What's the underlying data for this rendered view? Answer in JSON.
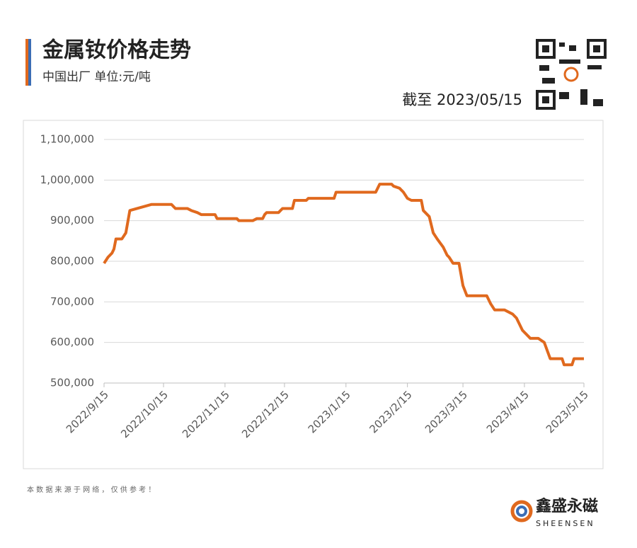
{
  "chart_data": {
    "type": "line",
    "title": "金属钕价格走势",
    "subtitle": "中国出厂  单位:元/吨",
    "date_note": "截至 2023/05/15",
    "footnote": "本 数 据 来 源 于 网 络 ， 仅 供 参 考 ！",
    "brand": "鑫盛永磁",
    "brand_en": "SHEENSEN",
    "x": [
      "2022/9/15",
      "2022/9/17",
      "2022/9/19",
      "2022/9/20",
      "2022/9/21",
      "2022/9/24",
      "2022/9/26",
      "2022/9/28",
      "2022/10/9",
      "2022/10/19",
      "2022/10/21",
      "2022/10/27",
      "2022/10/29",
      "2022/11/1",
      "2022/11/3",
      "2022/11/10",
      "2022/11/11",
      "2022/11/21",
      "2022/11/22",
      "2022/11/29",
      "2022/12/1",
      "2022/12/4",
      "2022/12/5",
      "2022/12/6",
      "2022/12/12",
      "2022/12/14",
      "2022/12/19",
      "2022/12/20",
      "2022/12/26",
      "2022/12/27",
      "2023/1/9",
      "2023/1/10",
      "2023/1/30",
      "2023/2/1",
      "2023/2/7",
      "2023/2/8",
      "2023/2/11",
      "2023/2/13",
      "2023/2/15",
      "2023/2/17",
      "2023/2/22",
      "2023/2/23",
      "2023/2/26",
      "2023/2/28",
      "2023/3/2",
      "2023/3/5",
      "2023/3/7",
      "2023/3/8",
      "2023/3/10",
      "2023/3/13",
      "2023/3/15",
      "2023/3/17",
      "2023/3/27",
      "2023/3/29",
      "2023/3/31",
      "2023/4/5",
      "2023/4/9",
      "2023/4/11",
      "2023/4/14",
      "2023/4/18",
      "2023/4/22",
      "2023/4/25",
      "2023/4/28",
      "2023/5/4",
      "2023/5/5",
      "2023/5/9",
      "2023/5/10",
      "2023/5/15"
    ],
    "series": [
      {
        "name": "金属钕",
        "color": "#e0691e",
        "values": [
          795000,
          810000,
          820000,
          830000,
          855000,
          855000,
          870000,
          925000,
          940000,
          940000,
          930000,
          930000,
          925000,
          920000,
          915000,
          915000,
          905000,
          905000,
          900000,
          900000,
          905000,
          905000,
          915000,
          920000,
          920000,
          930000,
          930000,
          950000,
          950000,
          955000,
          955000,
          970000,
          970000,
          990000,
          990000,
          985000,
          980000,
          970000,
          955000,
          950000,
          950000,
          925000,
          910000,
          870000,
          855000,
          835000,
          815000,
          810000,
          795000,
          795000,
          740000,
          715000,
          715000,
          695000,
          680000,
          680000,
          670000,
          660000,
          630000,
          610000,
          610000,
          600000,
          560000,
          560000,
          545000,
          545000,
          560000,
          560000
        ]
      }
    ],
    "xlim": [
      "2022/9/15",
      "2023/5/15"
    ],
    "xticks": [
      "2022/9/15",
      "2022/10/15",
      "2022/11/15",
      "2022/12/15",
      "2023/1/15",
      "2023/2/15",
      "2023/3/15",
      "2023/4/15",
      "2023/5/15"
    ],
    "ylim": [
      500000,
      1100000
    ],
    "yticks": [
      {
        "value": 500000,
        "label": "500,000"
      },
      {
        "value": 600000,
        "label": "600,000"
      },
      {
        "value": 700000,
        "label": "700,000"
      },
      {
        "value": 800000,
        "label": "800,000"
      },
      {
        "value": 900000,
        "label": "900,000"
      },
      {
        "value": 1000000,
        "label": "1,000,000"
      },
      {
        "value": 1100000,
        "label": "1,100,000"
      }
    ],
    "grid": true
  }
}
